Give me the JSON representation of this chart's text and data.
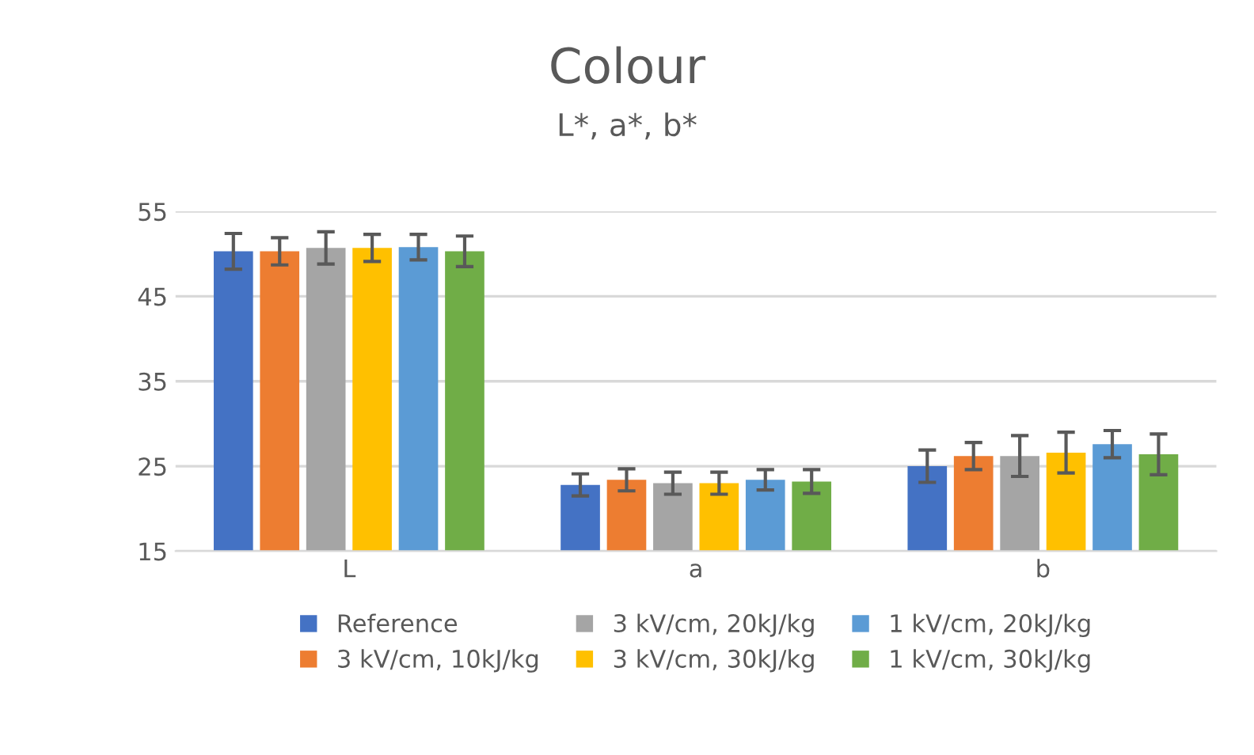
{
  "chart_data": {
    "type": "bar",
    "title": "Colour",
    "subtitle": "L*, a*, b*",
    "categories": [
      "L",
      "a",
      "b"
    ],
    "series": [
      {
        "name": "Reference",
        "color": "#4472c4",
        "values": [
          50.3,
          22.8,
          25.0
        ],
        "errors": [
          2.1,
          1.3,
          1.9
        ]
      },
      {
        "name": "3 kV/cm, 10kJ/kg",
        "color": "#ed7d31",
        "values": [
          50.3,
          23.4,
          26.2
        ],
        "errors": [
          1.6,
          1.3,
          1.6
        ]
      },
      {
        "name": "3 kV/cm, 20kJ/kg",
        "color": "#a5a5a5",
        "values": [
          50.7,
          23.0,
          26.2
        ],
        "errors": [
          1.9,
          1.3,
          2.4
        ]
      },
      {
        "name": "3 kV/cm, 30kJ/kg",
        "color": "#ffc000",
        "values": [
          50.7,
          23.0,
          26.6
        ],
        "errors": [
          1.6,
          1.3,
          2.4
        ]
      },
      {
        "name": "1 kV/cm, 20kJ/kg",
        "color": "#5b9bd5",
        "values": [
          50.8,
          23.4,
          27.6
        ],
        "errors": [
          1.5,
          1.2,
          1.6
        ]
      },
      {
        "name": "1 kV/cm, 30kJ/kg",
        "color": "#70ad47",
        "values": [
          50.3,
          23.2,
          26.4
        ],
        "errors": [
          1.8,
          1.4,
          2.4
        ]
      }
    ],
    "ylim": [
      15,
      55
    ],
    "yticks": [
      15,
      25,
      35,
      45,
      55
    ],
    "grid": "y",
    "legend": "bottom"
  }
}
